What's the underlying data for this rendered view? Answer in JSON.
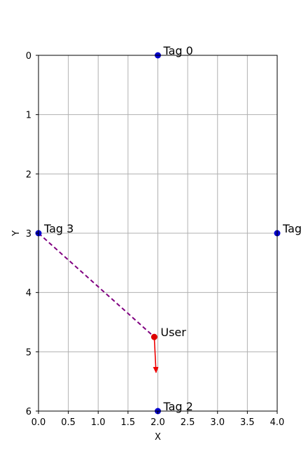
{
  "chart_data": {
    "type": "scatter",
    "title": "",
    "xlabel": "X",
    "ylabel": "Y",
    "xlim": [
      0,
      4
    ],
    "ylim": [
      6,
      0
    ],
    "y_inverted": true,
    "grid": true,
    "x_ticks": [
      "0.0",
      "0.5",
      "1.0",
      "1.5",
      "2.0",
      "2.5",
      "3.0",
      "3.5",
      "4.0"
    ],
    "y_ticks": [
      "0",
      "1",
      "2",
      "3",
      "4",
      "5",
      "6"
    ],
    "tags": [
      {
        "label": "Tag 0",
        "x": 2.0,
        "y": 0.0
      },
      {
        "label": "Tag",
        "x": 4.0,
        "y": 3.0
      },
      {
        "label": "Tag 2",
        "x": 2.0,
        "y": 6.0
      },
      {
        "label": "Tag 3",
        "x": 0.0,
        "y": 3.0
      }
    ],
    "user": {
      "label": "User",
      "x": 1.94,
      "y": 4.75
    },
    "heading_arrow": {
      "from": [
        1.94,
        4.75
      ],
      "to": [
        1.97,
        5.35
      ]
    },
    "dashed_line": {
      "from": [
        0.0,
        3.0
      ],
      "to": [
        1.94,
        4.75
      ]
    },
    "colors": {
      "tag": "#0000cc",
      "user": "#dd0000",
      "arrow": "#ee0000",
      "dashed_line": "#800080",
      "grid": "#b0b0b0"
    }
  }
}
